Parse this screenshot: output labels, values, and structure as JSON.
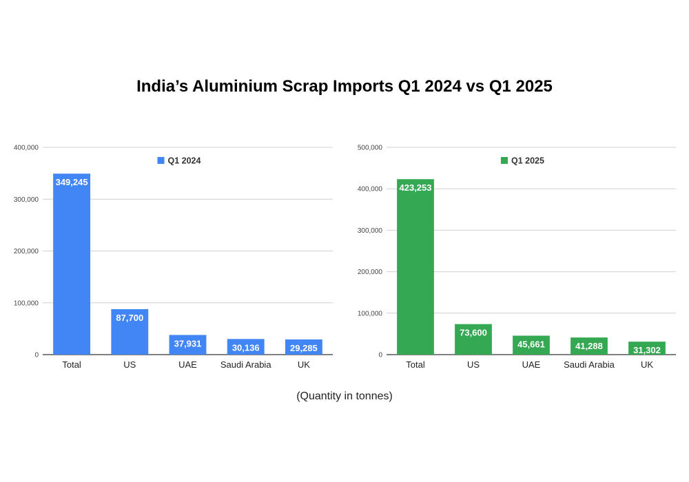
{
  "title": "India’s Aluminium Scrap Imports Q1 2024 vs Q1 2025",
  "footnote": "(Quantity in tonnes)",
  "chart_data": [
    {
      "type": "bar",
      "categories": [
        "Total",
        "US",
        "UAE",
        "Saudi Arabia",
        "UK"
      ],
      "series": [
        {
          "name": "Q1 2024",
          "values": [
            349245,
            87700,
            37931,
            30136,
            29285
          ],
          "color": "#4285f4"
        }
      ],
      "data_labels": [
        "349,245",
        "87,700",
        "37,931",
        "30,136",
        "29,285"
      ],
      "ylim": [
        0,
        400000
      ],
      "yticks": [
        0,
        100000,
        200000,
        300000,
        400000
      ],
      "ytick_labels": [
        "0",
        "100,000",
        "200,000",
        "300,000",
        "400,000"
      ],
      "grid": true,
      "legend": "top-center",
      "xlabel": "",
      "ylabel": ""
    },
    {
      "type": "bar",
      "categories": [
        "Total",
        "US",
        "UAE",
        "Saudi Arabia",
        "UK"
      ],
      "series": [
        {
          "name": "Q1 2025",
          "values": [
            423253,
            73600,
            45661,
            41288,
            31302
          ],
          "color": "#34a853"
        }
      ],
      "data_labels": [
        "423,253",
        "73,600",
        "45,661",
        "41,288",
        "31,302"
      ],
      "ylim": [
        0,
        500000
      ],
      "yticks": [
        0,
        100000,
        200000,
        300000,
        400000,
        500000
      ],
      "ytick_labels": [
        "0",
        "100,000",
        "200,000",
        "300,000",
        "400,000",
        "500,000"
      ],
      "grid": true,
      "legend": "top-center",
      "xlabel": "",
      "ylabel": ""
    }
  ]
}
